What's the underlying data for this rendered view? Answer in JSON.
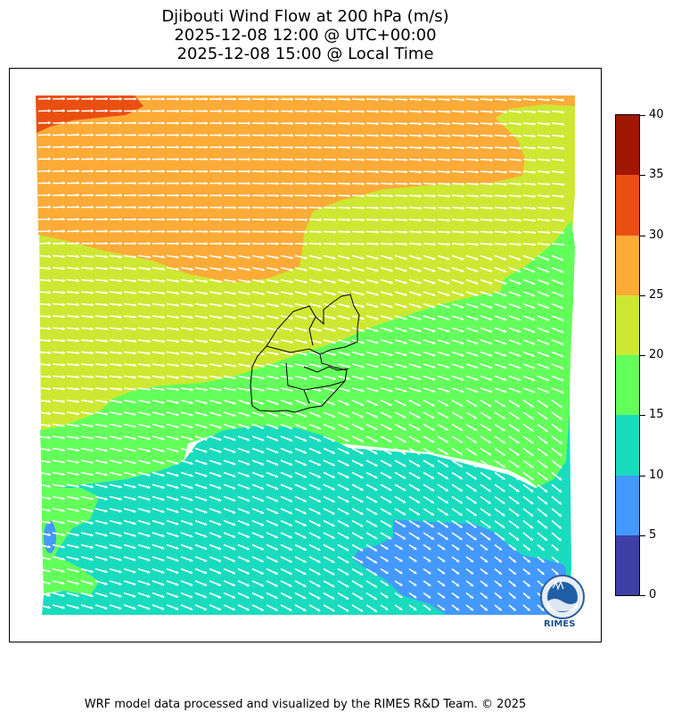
{
  "title": {
    "line1": "Djibouti Wind Flow at 200 hPa (m/s)",
    "line2": "2025-12-08 12:00 @ UTC+00:00",
    "line3": "2025-12-08 15:00 @ Local Time"
  },
  "colorbar": {
    "levels": [
      0,
      5,
      10,
      15,
      20,
      25,
      30,
      35,
      40
    ],
    "labels": [
      "0",
      "5",
      "10",
      "15",
      "20",
      "25",
      "30",
      "35",
      "40"
    ],
    "colors": [
      "#3f3fa8",
      "#4499ff",
      "#19dcbe",
      "#63ff5a",
      "#cde832",
      "#fdab37",
      "#ea4f12",
      "#a11802"
    ]
  },
  "map": {
    "field": "wind speed",
    "level": "200 hPa",
    "units": "m/s",
    "wind_direction": "westerly",
    "vector_color": "#ffffff",
    "boundary_color": "#000000"
  },
  "logo": {
    "name": "rimes-logo-icon",
    "text": "RIMES"
  },
  "footer": "WRF model data processed and visualized by the RIMES R&D Team. © 2025"
}
